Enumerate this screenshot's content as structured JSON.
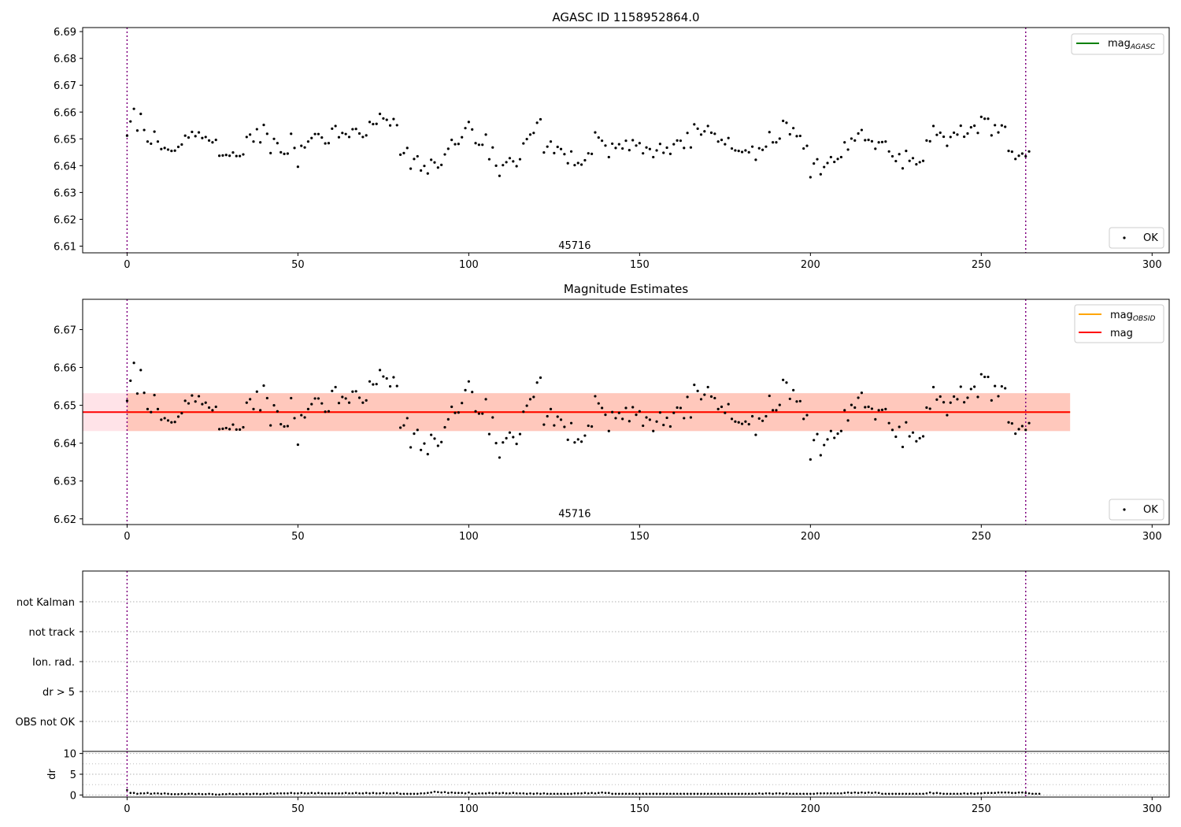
{
  "colors": {
    "point": "#000000",
    "vline": "#800080",
    "mag_agasc_line": "#008000",
    "mag_obsid_line": "#ffa500",
    "mag_line": "#ff0000",
    "band_pink": "#ffc0cb",
    "band_orange": "#ffa07a",
    "grid": "#b0b0b0"
  },
  "chart_data": [
    {
      "type": "scatter",
      "title": "AGASC ID 1158952864.0",
      "xlim": [
        -13,
        305
      ],
      "ylim": [
        6.6075,
        6.6915
      ],
      "xticks": [
        0,
        50,
        100,
        150,
        200,
        250,
        300
      ],
      "yticks": [
        6.61,
        6.62,
        6.63,
        6.64,
        6.65,
        6.66,
        6.67,
        6.68,
        6.69
      ],
      "vlines": [
        0,
        263
      ],
      "annotation": {
        "text": "45716",
        "x": 131,
        "y": 6.609
      },
      "legend_lines": [
        {
          "name": "mag",
          "sub": "AGASC",
          "placement": "upper right"
        }
      ],
      "legend_points": [
        {
          "name": "OK",
          "placement": "lower right"
        }
      ],
      "series_ref": "mag_values"
    },
    {
      "type": "scatter",
      "title": "Magnitude Estimates",
      "xlim": [
        -13,
        305
      ],
      "ylim": [
        6.6185,
        6.678
      ],
      "xticks": [
        0,
        50,
        100,
        150,
        200,
        250,
        300
      ],
      "yticks": [
        6.62,
        6.63,
        6.64,
        6.65,
        6.66,
        6.67
      ],
      "vlines": [
        0,
        263
      ],
      "annotation": {
        "text": "45716",
        "x": 131,
        "y": 6.6205
      },
      "mag": 6.6482,
      "mag_obsid": 6.6482,
      "band": {
        "low": 6.6432,
        "high": 6.6532
      },
      "band_obsid_x": [
        0,
        276
      ],
      "band_x": [
        -13,
        276
      ],
      "legend_lines": [
        {
          "name": "mag",
          "sub": "OBSID",
          "placement": "upper right"
        },
        {
          "name": "mag",
          "sub": "",
          "placement": "upper right"
        }
      ],
      "legend_points": [
        {
          "name": "OK",
          "placement": "lower right"
        }
      ],
      "series_ref": "mag_values"
    },
    {
      "type": "scatter",
      "title": "",
      "flags": [
        "not Kalman",
        "not track",
        "Ion. rad.",
        "dr > 5",
        "OBS not OK"
      ],
      "vlines": [
        0,
        263
      ],
      "dr_panel": {
        "ylabel": "dr",
        "yticks": [
          0,
          5,
          10
        ],
        "ylim": [
          -0.5,
          10.5
        ]
      }
    }
  ],
  "mag_values": [
    6.6512,
    6.6565,
    6.6612,
    6.6531,
    6.6593,
    6.6533,
    6.649,
    6.6482,
    6.6527,
    6.649,
    6.6462,
    6.6466,
    6.646,
    6.6455,
    6.6456,
    6.647,
    6.6479,
    6.6512,
    6.6505,
    6.6526,
    6.651,
    6.6524,
    6.6503,
    6.6507,
    6.6494,
    6.6487,
    6.6496,
    6.6437,
    6.6438,
    6.644,
    6.6437,
    6.6449,
    6.6436,
    6.6436,
    6.6442,
    6.6507,
    6.6516,
    6.649,
    6.6536,
    6.6487,
    6.6552,
    6.6519,
    6.6447,
    6.65,
    6.6484,
    6.645,
    6.6444,
    6.6445,
    6.6519,
    6.6466,
    6.6396,
    6.6474,
    6.6468,
    6.649,
    6.6503,
    6.6518,
    6.6518,
    6.6505,
    6.6483,
    6.6484,
    6.6538,
    6.6548,
    6.6506,
    6.6522,
    6.6518,
    6.6507,
    6.6536,
    6.6537,
    6.652,
    6.6507,
    6.6513,
    6.6563,
    6.6555,
    6.6556,
    6.6593,
    6.6576,
    6.6571,
    6.655,
    6.6574,
    6.6551,
    6.6441,
    6.6447,
    6.6466,
    6.6389,
    6.6425,
    6.6435,
    6.6382,
    6.6399,
    6.6371,
    6.6422,
    6.6412,
    6.6393,
    6.6403,
    6.6442,
    6.6463,
    6.6496,
    6.648,
    6.6481,
    6.6506,
    6.654,
    6.6563,
    6.6535,
    6.6484,
    6.6478,
    6.6478,
    6.6516,
    6.6424,
    6.6468,
    6.64,
    6.6362,
    6.6402,
    6.6413,
    6.6428,
    6.6416,
    6.6398,
    6.6424,
    6.6483,
    6.6499,
    6.6516,
    6.6522,
    6.656,
    6.6573,
    6.6449,
    6.6471,
    6.649,
    6.6447,
    6.647,
    6.6462,
    6.6443,
    6.6409,
    6.6453,
    6.6402,
    6.641,
    6.6404,
    6.642,
    6.6446,
    6.6444,
    6.6524,
    6.6505,
    6.6493,
    6.6475,
    6.6432,
    6.6482,
    6.6466,
    6.648,
    6.6464,
    6.6493,
    6.6458,
    6.6495,
    6.6475,
    6.6484,
    6.6446,
    6.6468,
    6.6462,
    6.6432,
    6.6457,
    6.6481,
    6.6448,
    6.6467,
    6.6444,
    6.648,
    6.6494,
    6.6493,
    6.6466,
    6.6522,
    6.6468,
    6.6554,
    6.6538,
    6.6516,
    6.6528,
    6.6548,
    6.6523,
    6.6519,
    6.649,
    6.6496,
    6.648,
    6.6503,
    6.6464,
    6.6457,
    6.6455,
    6.6451,
    6.6457,
    6.645,
    6.6471,
    6.6422,
    6.6465,
    6.6459,
    6.6471,
    6.6525,
    6.6487,
    6.6487,
    6.6501,
    6.6567,
    6.656,
    6.6517,
    6.654,
    6.651,
    6.6511,
    6.6464,
    6.6474,
    6.6357,
    6.6408,
    6.6424,
    6.6368,
    6.6395,
    6.641,
    6.6432,
    6.6414,
    6.6425,
    6.6432,
    6.6487,
    6.646,
    6.6501,
    6.6494,
    6.652,
    6.6533,
    6.6495,
    6.6496,
    6.6491,
    6.6463,
    6.6487,
    6.6488,
    6.649,
    6.6453,
    6.6435,
    6.6417,
    6.6443,
    6.639,
    6.6455,
    6.6418,
    6.6428,
    6.6405,
    6.6413,
    6.6418,
    6.6494,
    6.6491,
    6.6548,
    6.6515,
    6.6523,
    6.6508,
    6.6474,
    6.6507,
    6.6523,
    6.6516,
    6.6549,
    6.6508,
    6.652,
    6.6543,
    6.6549,
    6.6522,
    6.6582,
    6.6575,
    6.6575,
    6.6513,
    6.6551,
    6.6524,
    6.655,
    6.6545,
    6.6455,
    6.6452,
    6.6425,
    6.6437,
    6.6445,
    6.6435,
    6.6453
  ],
  "dr_values": [
    1.2,
    0.5,
    0.5,
    0.3,
    0.4,
    0.4,
    0.5,
    0.3,
    0.4,
    0.4,
    0.3,
    0.4,
    0.3,
    0.2,
    0.2,
    0.2,
    0.3,
    0.2,
    0.3,
    0.3,
    0.2,
    0.3,
    0.2,
    0.2,
    0.3,
    0.2,
    0.1,
    0.1,
    0.2,
    0.2,
    0.3,
    0.2,
    0.2,
    0.3,
    0.2,
    0.3,
    0.2,
    0.3,
    0.3,
    0.2,
    0.3,
    0.3,
    0.4,
    0.3,
    0.4,
    0.4,
    0.4,
    0.4,
    0.5,
    0.4,
    0.4,
    0.5,
    0.4,
    0.4,
    0.5,
    0.4,
    0.5,
    0.4,
    0.4,
    0.4,
    0.4,
    0.4,
    0.4,
    0.4,
    0.5,
    0.4,
    0.4,
    0.5,
    0.4,
    0.4,
    0.5,
    0.4,
    0.5,
    0.4,
    0.4,
    0.5,
    0.4,
    0.4,
    0.4,
    0.5,
    0.3,
    0.3,
    0.3,
    0.3,
    0.3,
    0.3,
    0.4,
    0.4,
    0.5,
    0.6,
    0.8,
    0.7,
    0.6,
    0.7,
    0.5,
    0.6,
    0.5,
    0.5,
    0.5,
    0.4,
    0.6,
    0.3,
    0.3,
    0.4,
    0.4,
    0.4,
    0.5,
    0.4,
    0.5,
    0.4,
    0.5,
    0.4,
    0.4,
    0.5,
    0.4,
    0.4,
    0.4,
    0.3,
    0.4,
    0.3,
    0.4,
    0.3,
    0.4,
    0.3,
    0.3,
    0.3,
    0.3,
    0.3,
    0.3,
    0.3,
    0.3,
    0.4,
    0.4,
    0.4,
    0.5,
    0.4,
    0.5,
    0.4,
    0.5,
    0.6,
    0.5,
    0.5,
    0.3,
    0.3,
    0.3,
    0.3,
    0.3,
    0.3,
    0.3,
    0.3,
    0.3,
    0.3,
    0.3,
    0.3,
    0.3,
    0.3,
    0.3,
    0.3,
    0.3,
    0.3,
    0.3,
    0.3,
    0.3,
    0.3,
    0.3,
    0.3,
    0.3,
    0.3,
    0.3,
    0.3,
    0.3,
    0.3,
    0.3,
    0.3,
    0.3,
    0.3,
    0.3,
    0.3,
    0.3,
    0.3,
    0.3,
    0.3,
    0.3,
    0.3,
    0.3,
    0.4,
    0.3,
    0.4,
    0.4,
    0.3,
    0.4,
    0.4,
    0.3,
    0.4,
    0.3,
    0.3,
    0.3,
    0.3,
    0.3,
    0.3,
    0.3,
    0.3,
    0.4,
    0.4,
    0.4,
    0.4,
    0.4,
    0.4,
    0.4,
    0.4,
    0.5,
    0.6,
    0.5,
    0.6,
    0.5,
    0.6,
    0.5,
    0.6,
    0.5,
    0.6,
    0.5,
    0.3,
    0.3,
    0.3,
    0.3,
    0.3,
    0.3,
    0.3,
    0.3,
    0.3,
    0.3,
    0.3,
    0.3,
    0.3,
    0.4,
    0.6,
    0.4,
    0.5,
    0.4,
    0.3,
    0.3,
    0.3,
    0.3,
    0.3,
    0.3,
    0.4,
    0.3,
    0.4,
    0.3,
    0.4,
    0.4,
    0.5,
    0.5,
    0.5,
    0.5,
    0.6,
    0.6,
    0.6,
    0.6,
    0.5,
    0.5,
    0.6,
    0.6,
    0.5,
    0.4,
    0.3,
    0.3,
    0.3
  ]
}
